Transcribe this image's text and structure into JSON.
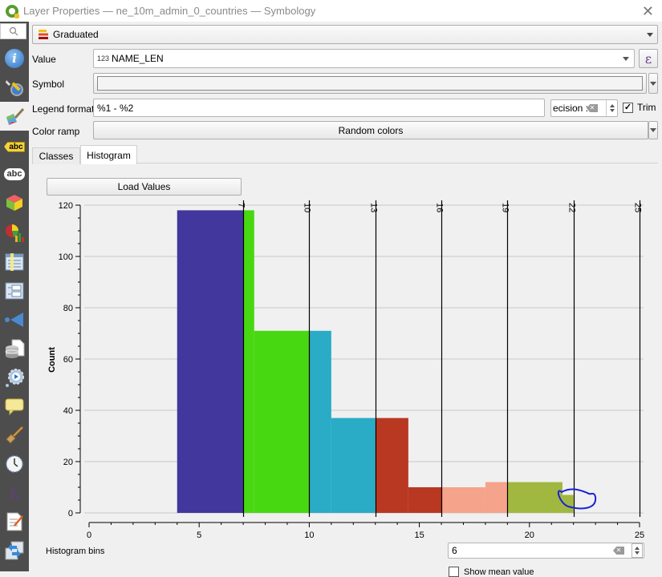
{
  "window": {
    "title": "Layer Properties — ne_10m_admin_0_countries — Symbology",
    "close_icon": "close-icon"
  },
  "sidebar": {
    "search_icon": "search-icon",
    "items": [
      {
        "name": "information",
        "icon": "info-icon"
      },
      {
        "name": "source",
        "icon": "source-settings-icon"
      },
      {
        "name": "symbology",
        "icon": "symbology-brush-icon",
        "active": true
      },
      {
        "name": "labels",
        "icon": "labels-icon"
      },
      {
        "name": "masks",
        "icon": "masks-abc-icon"
      },
      {
        "name": "3d-view",
        "icon": "3d-cube-icon"
      },
      {
        "name": "diagrams",
        "icon": "diagrams-icon"
      },
      {
        "name": "fields",
        "icon": "fields-icon"
      },
      {
        "name": "attributes-form",
        "icon": "attributes-form-icon"
      },
      {
        "name": "joins",
        "icon": "joins-icon"
      },
      {
        "name": "auxiliary-storage",
        "icon": "auxiliary-storage-icon"
      },
      {
        "name": "actions",
        "icon": "actions-icon"
      },
      {
        "name": "display",
        "icon": "display-tooltip-icon"
      },
      {
        "name": "rendering",
        "icon": "rendering-brush-icon"
      },
      {
        "name": "temporal",
        "icon": "clock-icon"
      },
      {
        "name": "variables",
        "icon": "epsilon-icon"
      },
      {
        "name": "metadata",
        "icon": "metadata-icon"
      },
      {
        "name": "dependencies",
        "icon": "dependencies-icon"
      }
    ]
  },
  "renderer": {
    "selected": "Graduated",
    "icon": "graduated-icon"
  },
  "form": {
    "value_label": "Value",
    "value_type_badge": "123",
    "value_field": "NAME_LEN",
    "expression_button": "ε",
    "symbol_label": "Symbol",
    "legend_format_label": "Legend format",
    "legend_format_value": "%1 - %2",
    "precision_value": "ecision :",
    "trim_label": "Trim",
    "trim_checked": true,
    "color_ramp_label": "Color ramp",
    "color_ramp_value": "Random colors"
  },
  "tabs": [
    {
      "label": "Classes",
      "active": false
    },
    {
      "label": "Histogram",
      "active": true
    }
  ],
  "histogram": {
    "load_values_label": "Load Values",
    "bins_label": "Histogram bins",
    "bins_value": "6",
    "show_mean_label": "Show mean value",
    "show_mean_checked": false
  },
  "chart_data": {
    "type": "bar",
    "title": "",
    "xlabel": "",
    "ylabel": "Count",
    "xlim": [
      0,
      25
    ],
    "ylim": [
      0,
      120
    ],
    "x_ticks": [
      0,
      5,
      10,
      15,
      20,
      25
    ],
    "y_ticks": [
      0,
      20,
      40,
      60,
      80,
      100,
      120
    ],
    "grid": true,
    "class_breaks": [
      7,
      10,
      13,
      16,
      19,
      22,
      25
    ],
    "class_colors": [
      "#41379c",
      "#48d811",
      "#2aabc6",
      "#b93821",
      "#f5a38a",
      "#a0b840"
    ],
    "bars": [
      {
        "x0": 4,
        "x1": 7,
        "count": 118,
        "color": "#41379c"
      },
      {
        "x0": 7,
        "x1": 7.5,
        "count": 118,
        "color": "#48d811"
      },
      {
        "x0": 7.5,
        "x1": 10,
        "count": 71,
        "color": "#48d811"
      },
      {
        "x0": 10,
        "x1": 11,
        "count": 71,
        "color": "#2aabc6"
      },
      {
        "x0": 11,
        "x1": 13,
        "count": 37,
        "color": "#2aabc6"
      },
      {
        "x0": 13,
        "x1": 14.5,
        "count": 37,
        "color": "#b93821"
      },
      {
        "x0": 14.5,
        "x1": 16,
        "count": 10,
        "color": "#b93821"
      },
      {
        "x0": 16,
        "x1": 18,
        "count": 10,
        "color": "#f5a38a"
      },
      {
        "x0": 18,
        "x1": 19,
        "count": 12,
        "color": "#f5a38a"
      },
      {
        "x0": 19,
        "x1": 21.5,
        "count": 12,
        "color": "#a0b840"
      },
      {
        "x0": 21.5,
        "x1": 22,
        "count": 7,
        "color": "#a0b840"
      }
    ],
    "annotation": "hand-drawn blue circle around bar near x=21.5–23"
  }
}
